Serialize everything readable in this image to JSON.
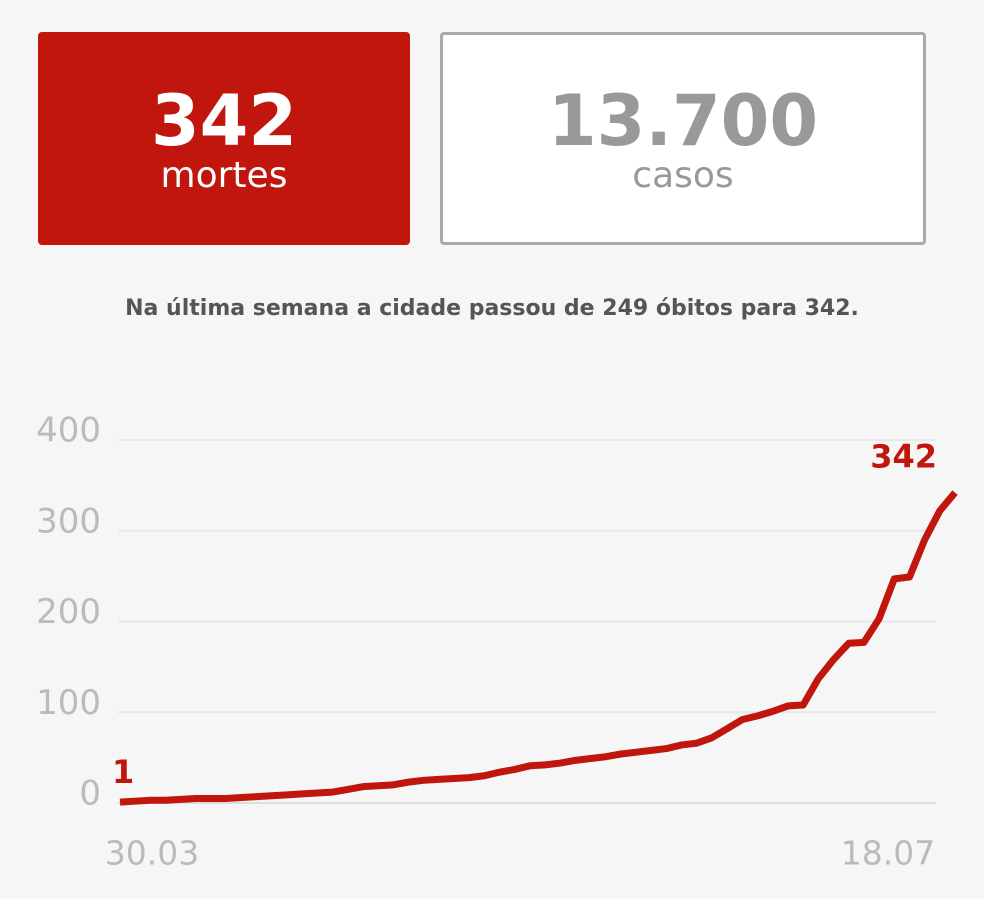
{
  "cards": [
    {
      "value": "342",
      "label": "mortes"
    },
    {
      "value": "13.700",
      "label": "casos"
    }
  ],
  "summary": "Na última semana a cidade passou de 249 óbitos para 342.",
  "chart_data": {
    "type": "line",
    "color": "#c0160d",
    "grid": true,
    "categories": [
      "30.03",
      null,
      null,
      null,
      null,
      null,
      null,
      null,
      null,
      null,
      null,
      null,
      null,
      null,
      null,
      null,
      null,
      null,
      null,
      null,
      null,
      null,
      null,
      null,
      null,
      null,
      null,
      null,
      null,
      null,
      null,
      null,
      null,
      null,
      null,
      null,
      null,
      null,
      null,
      null,
      null,
      null,
      null,
      null,
      null,
      null,
      null,
      null,
      null,
      null,
      null,
      null,
      null,
      null,
      null,
      "18.07"
    ],
    "values": [
      1,
      2,
      3,
      3,
      4,
      5,
      5,
      5,
      6,
      7,
      8,
      9,
      10,
      11,
      12,
      15,
      18,
      19,
      20,
      23,
      25,
      26,
      27,
      28,
      30,
      34,
      37,
      41,
      42,
      44,
      47,
      49,
      51,
      54,
      56,
      58,
      60,
      64,
      66,
      72,
      82,
      92,
      96,
      101,
      107,
      108,
      137,
      158,
      176,
      177,
      203,
      247,
      249,
      290,
      322,
      342
    ],
    "ylim": [
      0,
      400
    ],
    "yticks": [
      0,
      100,
      200,
      300,
      400
    ]
  }
}
